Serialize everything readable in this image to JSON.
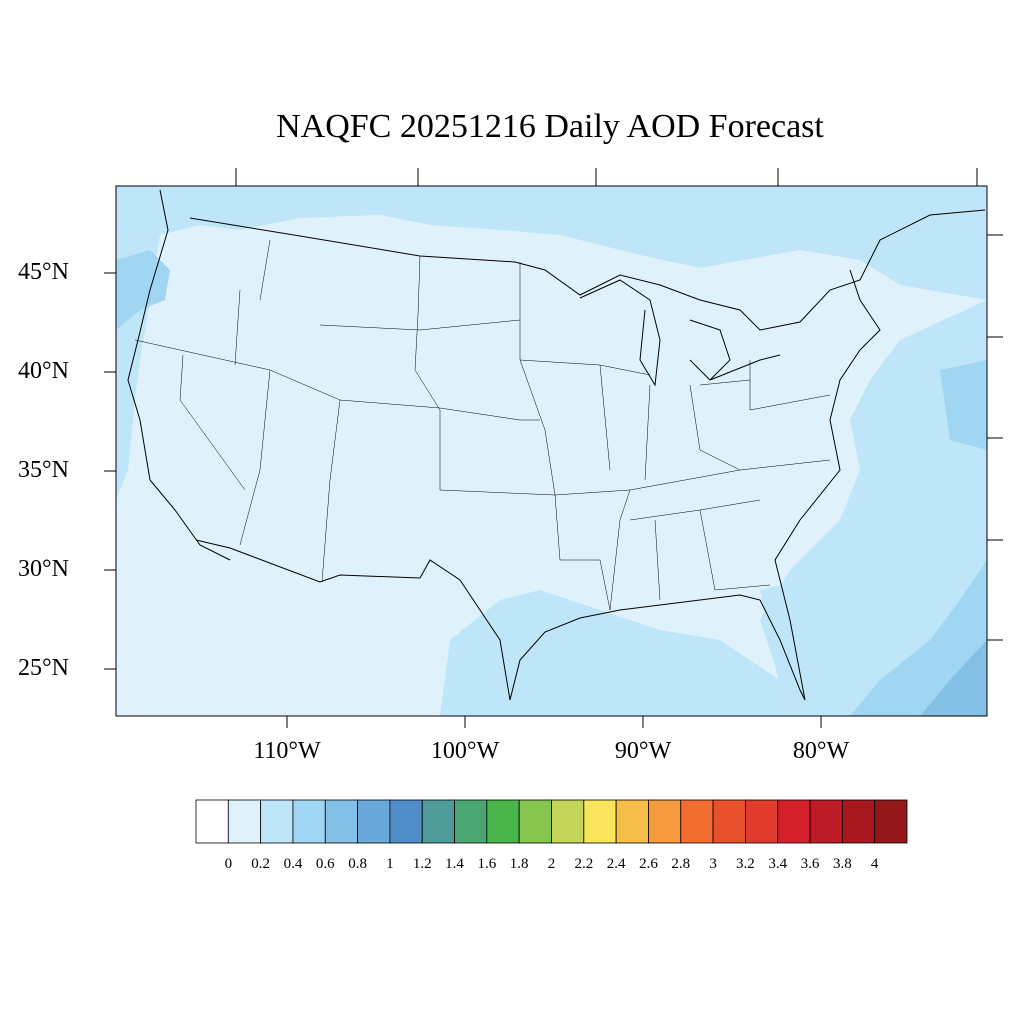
{
  "title": "NAQFC 20251216 Daily AOD Forecast",
  "latitude_labels": [
    "45°N",
    "40°N",
    "35°N",
    "30°N",
    "25°N"
  ],
  "longitude_labels": [
    "110°W",
    "100°W",
    "90°W",
    "80°W"
  ],
  "colorbar": {
    "colors": [
      "#ffffff",
      "#dff2fb",
      "#bfe6f8",
      "#a0d6f2",
      "#84bfe6",
      "#6aa8dc",
      "#4f8ec9",
      "#4e9b9a",
      "#4aa673",
      "#49b54a",
      "#86c64f",
      "#c5d559",
      "#f8e55c",
      "#f7bf4a",
      "#f59a3e",
      "#f26d2f",
      "#e9512d",
      "#e03b2c",
      "#d4202b",
      "#bd1b26",
      "#a9181f",
      "#941719"
    ],
    "tick_labels": [
      "0",
      "0.2",
      "0.4",
      "0.6",
      "0.8",
      "1",
      "1.2",
      "1.4",
      "1.6",
      "1.8",
      "2",
      "2.2",
      "2.4",
      "2.6",
      "2.8",
      "3",
      "3.2",
      "3.4",
      "3.6",
      "3.8",
      "4"
    ]
  },
  "map_colors": {
    "land_base": "#dff2fb",
    "moderate": "#bfe6f8",
    "elevated": "#a0d6f2",
    "high": "#84bfe6",
    "border": "#000000"
  }
}
